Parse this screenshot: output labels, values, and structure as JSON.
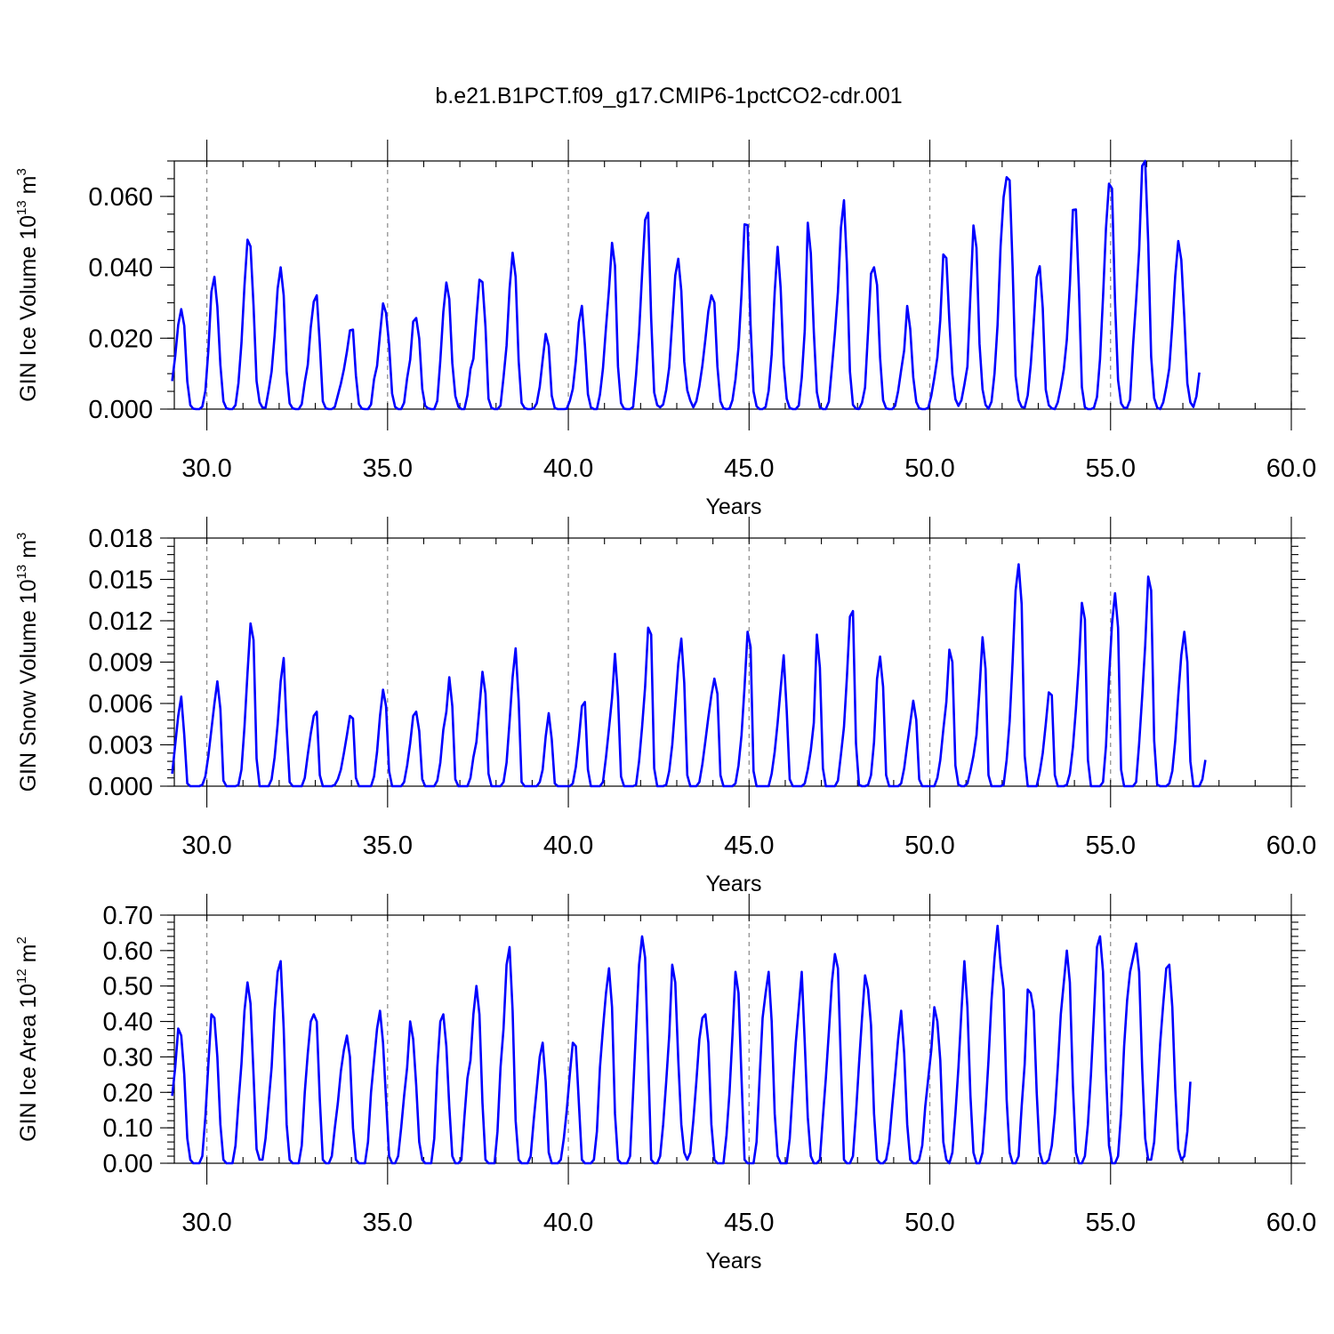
{
  "figure": {
    "title": "b.e21.B1PCT.f09_g17.CMIP6-1pctCO2-cdr.001"
  },
  "chart_data": [
    {
      "type": "line",
      "xlabel": "Years",
      "ylabel": {
        "base": "GIN Ice Volume 10",
        "exp": "13",
        "unit": " m",
        "unit_exp": "3"
      },
      "xlim": [
        29.1,
        60.0
      ],
      "ylim": [
        0.0,
        0.07
      ],
      "x_ticks": [
        30,
        35,
        40,
        45,
        50,
        55,
        60
      ],
      "x_tick_labels": [
        "30.0",
        "35.0",
        "40.0",
        "45.0",
        "50.0",
        "55.0",
        "60.0"
      ],
      "y_ticks": [
        0.0,
        0.02,
        0.04,
        0.06
      ],
      "y_tick_labels": [
        "0.000",
        "0.020",
        "0.040",
        "0.060"
      ],
      "y_minor_step": 0.005,
      "grid": "vertical dashed at major x ticks",
      "series_color": "#0000ff",
      "t0": 29.0417,
      "dt": 0.08333,
      "values": [
        0.0079,
        0.0149,
        0.0238,
        0.0282,
        0.0235,
        0.0078,
        0.0011,
        0.0001,
        0.0,
        0.0,
        0.0007,
        0.0051,
        0.0166,
        0.0331,
        0.0373,
        0.0289,
        0.0125,
        0.0022,
        0.0002,
        0.0,
        0.0,
        0.0011,
        0.0073,
        0.0186,
        0.0348,
        0.0478,
        0.0459,
        0.0291,
        0.0079,
        0.0019,
        0.0004,
        0.0004,
        0.0052,
        0.0106,
        0.0208,
        0.034,
        0.04,
        0.0321,
        0.0107,
        0.0016,
        0.0002,
        0.0,
        0.0,
        0.0014,
        0.0076,
        0.0125,
        0.023,
        0.0303,
        0.0321,
        0.0183,
        0.0022,
        0.0002,
        0.0,
        0.0,
        0.0006,
        0.0039,
        0.0072,
        0.0112,
        0.0162,
        0.0222,
        0.0224,
        0.0095,
        0.0014,
        0.0001,
        0.0,
        0.0,
        0.0013,
        0.0084,
        0.0122,
        0.0212,
        0.0298,
        0.0271,
        0.0182,
        0.0044,
        0.0006,
        0.0,
        0.0,
        0.0018,
        0.0087,
        0.0139,
        0.0247,
        0.0257,
        0.0199,
        0.0057,
        0.0009,
        0.0002,
        0.0,
        0.0,
        0.0023,
        0.0137,
        0.0274,
        0.0357,
        0.031,
        0.013,
        0.0037,
        0.0007,
        0.0,
        0.0,
        0.0039,
        0.0113,
        0.0142,
        0.0258,
        0.0365,
        0.0358,
        0.0232,
        0.0029,
        0.0003,
        0.0,
        0.0,
        0.001,
        0.009,
        0.0179,
        0.034,
        0.0441,
        0.0373,
        0.0136,
        0.0017,
        0.0003,
        0.0,
        0.0,
        0.0002,
        0.0016,
        0.0063,
        0.0139,
        0.0212,
        0.0178,
        0.0038,
        0.0003,
        0.0,
        0.0,
        0.0,
        0.0001,
        0.0023,
        0.0057,
        0.0135,
        0.0245,
        0.0291,
        0.018,
        0.0042,
        0.0005,
        0.0,
        0.0,
        0.0041,
        0.0115,
        0.023,
        0.0338,
        0.0469,
        0.0405,
        0.012,
        0.0017,
        0.0001,
        0.0,
        0.0,
        0.0006,
        0.0096,
        0.0215,
        0.0381,
        0.0534,
        0.0554,
        0.0256,
        0.0047,
        0.0011,
        0.0005,
        0.0013,
        0.0054,
        0.0118,
        0.0247,
        0.0377,
        0.0424,
        0.0333,
        0.0134,
        0.0053,
        0.0024,
        0.0005,
        0.0022,
        0.0065,
        0.0123,
        0.0198,
        0.0276,
        0.0321,
        0.03,
        0.012,
        0.0022,
        0.0002,
        0.0,
        0.0001,
        0.0025,
        0.0084,
        0.0174,
        0.0326,
        0.0521,
        0.0519,
        0.0236,
        0.005,
        0.0008,
        0.0,
        0.0,
        0.0006,
        0.0052,
        0.0154,
        0.033,
        0.0458,
        0.0341,
        0.0126,
        0.0029,
        0.0003,
        0.0,
        0.0,
        0.001,
        0.0088,
        0.0222,
        0.0526,
        0.044,
        0.0218,
        0.0048,
        0.0005,
        0.0,
        0.0,
        0.0021,
        0.0116,
        0.0215,
        0.0331,
        0.0512,
        0.0589,
        0.0409,
        0.0106,
        0.0012,
        0.0001,
        0.0,
        0.0018,
        0.0061,
        0.0219,
        0.0382,
        0.04,
        0.035,
        0.0145,
        0.0025,
        0.0002,
        0.0,
        0.0,
        0.0009,
        0.0051,
        0.011,
        0.0166,
        0.0291,
        0.0226,
        0.009,
        0.002,
        0.0002,
        0.0,
        0.0,
        0.0004,
        0.0038,
        0.0088,
        0.0146,
        0.0252,
        0.0436,
        0.0426,
        0.0249,
        0.0098,
        0.0028,
        0.0009,
        0.0025,
        0.0069,
        0.012,
        0.0324,
        0.0518,
        0.0455,
        0.0184,
        0.0056,
        0.0012,
        0.0001,
        0.0021,
        0.0101,
        0.0237,
        0.0459,
        0.0598,
        0.0654,
        0.0645,
        0.0402,
        0.0093,
        0.0025,
        0.0006,
        0.0004,
        0.0039,
        0.0124,
        0.0245,
        0.0372,
        0.0403,
        0.0285,
        0.0055,
        0.0011,
        0.0002,
        0.0,
        0.0019,
        0.0061,
        0.0112,
        0.0196,
        0.035,
        0.0562,
        0.0563,
        0.0338,
        0.0062,
        0.0005,
        0.0,
        0.0,
        0.0004,
        0.0034,
        0.0141,
        0.0316,
        0.051,
        0.0636,
        0.0622,
        0.0302,
        0.0082,
        0.0016,
        0.0003,
        0.0004,
        0.0026,
        0.0182,
        0.0307,
        0.0448,
        0.0686,
        0.07,
        0.047,
        0.0148,
        0.0031,
        0.0004,
        0.0,
        0.0019,
        0.0062,
        0.0115,
        0.0238,
        0.0376,
        0.0474,
        0.0421,
        0.0259,
        0.0073,
        0.0019,
        0.0006,
        0.0036,
        0.0103
      ]
    },
    {
      "type": "line",
      "xlabel": "Years",
      "ylabel": {
        "base": "GIN Snow Volume 10",
        "exp": "13",
        "unit": " m",
        "unit_exp": "3"
      },
      "xlim": [
        29.1,
        60.0
      ],
      "ylim": [
        0.0,
        0.018
      ],
      "x_ticks": [
        30,
        35,
        40,
        45,
        50,
        55,
        60
      ],
      "x_tick_labels": [
        "30.0",
        "35.0",
        "40.0",
        "45.0",
        "50.0",
        "55.0",
        "60.0"
      ],
      "y_ticks": [
        0.0,
        0.003,
        0.006,
        0.009,
        0.012,
        0.015,
        0.018
      ],
      "y_tick_labels": [
        "0.000",
        "0.003",
        "0.006",
        "0.009",
        "0.012",
        "0.015",
        "0.018"
      ],
      "y_minor_step": 0.0006,
      "grid": "vertical dashed at major x ticks",
      "series_color": "#0000ff",
      "t0": 29.0417,
      "dt": 0.08333,
      "values": [
        0.0009,
        0.003,
        0.0051,
        0.0065,
        0.0037,
        0.0002,
        0.0,
        0.0,
        0.0,
        0.0,
        0.0001,
        0.0007,
        0.0022,
        0.0041,
        0.006,
        0.0076,
        0.0056,
        0.0004,
        0.0,
        0.0,
        0.0,
        0.0,
        0.0001,
        0.0012,
        0.0043,
        0.0082,
        0.0118,
        0.0106,
        0.002,
        0.0,
        0.0,
        0.0,
        0.0,
        0.0005,
        0.0021,
        0.0045,
        0.0076,
        0.0093,
        0.0043,
        0.0003,
        0.0,
        0.0,
        0.0,
        0.0,
        0.0006,
        0.0023,
        0.0038,
        0.0051,
        0.0054,
        0.0008,
        0.0,
        0.0,
        0.0,
        0.0,
        0.0001,
        0.0005,
        0.0012,
        0.0024,
        0.0037,
        0.0051,
        0.0049,
        0.0006,
        0.0,
        0.0,
        0.0,
        0.0,
        0.0,
        0.0007,
        0.0025,
        0.0051,
        0.007,
        0.0058,
        0.0011,
        0.0,
        0.0,
        0.0,
        0.0,
        0.0003,
        0.0015,
        0.0031,
        0.0051,
        0.0054,
        0.004,
        0.0005,
        0.0,
        0.0,
        0.0,
        0.0,
        0.0004,
        0.0017,
        0.0041,
        0.0054,
        0.0079,
        0.0058,
        0.0005,
        0.0,
        0.0,
        0.0,
        0.0,
        0.0006,
        0.0021,
        0.0032,
        0.0057,
        0.0083,
        0.0067,
        0.0009,
        0.0,
        0.0,
        0.0,
        0.0,
        0.0003,
        0.0017,
        0.0047,
        0.0079,
        0.01,
        0.0062,
        0.0003,
        0.0,
        0.0,
        0.0,
        0.0,
        0.0,
        0.0003,
        0.0012,
        0.0036,
        0.0053,
        0.0034,
        0.0002,
        0.0,
        0.0,
        0.0,
        0.0,
        0.0,
        0.0002,
        0.0014,
        0.0034,
        0.0058,
        0.0061,
        0.0012,
        0.0,
        0.0,
        0.0,
        0.0,
        0.0003,
        0.0021,
        0.0042,
        0.0064,
        0.0096,
        0.0065,
        0.0007,
        0.0,
        0.0,
        0.0,
        0.0,
        0.0001,
        0.0018,
        0.0043,
        0.0072,
        0.0115,
        0.011,
        0.0013,
        0.0,
        0.0,
        0.0,
        0.0001,
        0.0011,
        0.003,
        0.0059,
        0.0089,
        0.0107,
        0.0075,
        0.0008,
        0.0,
        0.0,
        0.0,
        0.0003,
        0.0016,
        0.0033,
        0.005,
        0.0066,
        0.0078,
        0.0067,
        0.0008,
        0.0,
        0.0,
        0.0,
        0.0,
        0.0002,
        0.0015,
        0.0037,
        0.0072,
        0.0112,
        0.0101,
        0.0011,
        0.0,
        0.0,
        0.0,
        0.0,
        0.0,
        0.0009,
        0.0025,
        0.0046,
        0.0071,
        0.0095,
        0.0055,
        0.0005,
        0.0,
        0.0,
        0.0,
        0.0,
        0.0002,
        0.0012,
        0.0026,
        0.0046,
        0.011,
        0.0086,
        0.0013,
        0.0,
        0.0,
        0.0,
        0.0,
        0.0004,
        0.0023,
        0.0043,
        0.0079,
        0.0123,
        0.0127,
        0.0031,
        0.0001,
        0.0,
        0.0,
        0.0001,
        0.0008,
        0.0032,
        0.0078,
        0.0094,
        0.0072,
        0.0008,
        0.0,
        0.0,
        0.0,
        0.0,
        0.0002,
        0.0013,
        0.003,
        0.0046,
        0.0062,
        0.0048,
        0.0005,
        0.0,
        0.0,
        0.0,
        0.0,
        0.0,
        0.0006,
        0.0019,
        0.0041,
        0.0061,
        0.0099,
        0.009,
        0.0015,
        0.0001,
        0.0,
        0.0,
        0.0002,
        0.0011,
        0.0022,
        0.0037,
        0.007,
        0.0108,
        0.0085,
        0.0008,
        0.0,
        0.0,
        0.0,
        0.0,
        0.0001,
        0.0019,
        0.0047,
        0.009,
        0.0142,
        0.0161,
        0.0132,
        0.0022,
        0.0,
        0.0,
        0.0,
        0.0,
        0.001,
        0.0024,
        0.0045,
        0.0068,
        0.0066,
        0.0008,
        0.0,
        0.0,
        0.0,
        0.0001,
        0.0009,
        0.0028,
        0.0056,
        0.0089,
        0.0133,
        0.0121,
        0.0019,
        0.0,
        0.0,
        0.0,
        0.0,
        0.0003,
        0.0029,
        0.0078,
        0.0118,
        0.014,
        0.0115,
        0.0012,
        0.0,
        0.0,
        0.0,
        0.0,
        0.0003,
        0.0031,
        0.0065,
        0.0102,
        0.0152,
        0.0142,
        0.0033,
        0.0001,
        0.0,
        0.0,
        0.0,
        0.0002,
        0.0011,
        0.0033,
        0.0066,
        0.0095,
        0.0112,
        0.009,
        0.0018,
        0.0,
        0.0,
        0.0,
        0.0005,
        0.0019
      ]
    },
    {
      "type": "line",
      "xlabel": "Years",
      "ylabel": {
        "base": "GIN Ice Area 10",
        "exp": "12",
        "unit": " m",
        "unit_exp": "2"
      },
      "xlim": [
        29.1,
        60.0
      ],
      "ylim": [
        0.0,
        0.7
      ],
      "x_ticks": [
        30,
        35,
        40,
        45,
        50,
        55,
        60
      ],
      "x_tick_labels": [
        "30.0",
        "35.0",
        "40.0",
        "45.0",
        "50.0",
        "55.0",
        "60.0"
      ],
      "y_ticks": [
        0.0,
        0.1,
        0.2,
        0.3,
        0.4,
        0.5,
        0.6,
        0.7
      ],
      "y_tick_labels": [
        "0.00",
        "0.10",
        "0.20",
        "0.30",
        "0.40",
        "0.50",
        "0.60",
        "0.70"
      ],
      "y_minor_step": 0.02,
      "grid": "vertical dashed at major x ticks",
      "series_color": "#0000ff",
      "t0": 29.0417,
      "dt": 0.08333,
      "values": [
        0.19,
        0.27,
        0.38,
        0.36,
        0.25,
        0.07,
        0.01,
        0.0,
        0.0,
        0.0,
        0.02,
        0.13,
        0.28,
        0.42,
        0.41,
        0.3,
        0.11,
        0.01,
        0.0,
        0.0,
        0.0,
        0.05,
        0.17,
        0.28,
        0.43,
        0.51,
        0.45,
        0.25,
        0.04,
        0.01,
        0.01,
        0.07,
        0.17,
        0.27,
        0.43,
        0.54,
        0.57,
        0.38,
        0.11,
        0.01,
        0.0,
        0.0,
        0.0,
        0.05,
        0.2,
        0.31,
        0.4,
        0.42,
        0.4,
        0.18,
        0.01,
        0.0,
        0.0,
        0.02,
        0.1,
        0.17,
        0.26,
        0.32,
        0.36,
        0.3,
        0.1,
        0.01,
        0.0,
        0.0,
        0.0,
        0.06,
        0.2,
        0.29,
        0.38,
        0.43,
        0.34,
        0.18,
        0.02,
        0.0,
        0.0,
        0.02,
        0.1,
        0.19,
        0.27,
        0.4,
        0.35,
        0.22,
        0.06,
        0.01,
        0.0,
        0.0,
        0.0,
        0.07,
        0.27,
        0.4,
        0.42,
        0.33,
        0.16,
        0.02,
        0.0,
        0.0,
        0.01,
        0.13,
        0.24,
        0.29,
        0.42,
        0.5,
        0.42,
        0.17,
        0.01,
        0.0,
        0.0,
        0.0,
        0.09,
        0.27,
        0.38,
        0.56,
        0.61,
        0.43,
        0.12,
        0.01,
        0.0,
        0.0,
        0.0,
        0.02,
        0.12,
        0.21,
        0.3,
        0.34,
        0.23,
        0.03,
        0.0,
        0.0,
        0.0,
        0.01,
        0.07,
        0.15,
        0.25,
        0.34,
        0.33,
        0.17,
        0.01,
        0.0,
        0.0,
        0.0,
        0.01,
        0.09,
        0.27,
        0.38,
        0.48,
        0.55,
        0.44,
        0.14,
        0.01,
        0.0,
        0.0,
        0.0,
        0.02,
        0.2,
        0.38,
        0.56,
        0.64,
        0.58,
        0.3,
        0.01,
        0.0,
        0.0,
        0.02,
        0.11,
        0.23,
        0.36,
        0.56,
        0.51,
        0.29,
        0.11,
        0.03,
        0.01,
        0.03,
        0.12,
        0.23,
        0.35,
        0.41,
        0.42,
        0.34,
        0.11,
        0.01,
        0.0,
        0.0,
        0.0,
        0.08,
        0.2,
        0.36,
        0.54,
        0.48,
        0.24,
        0.01,
        0.0,
        0.0,
        0.0,
        0.06,
        0.24,
        0.41,
        0.48,
        0.54,
        0.4,
        0.14,
        0.02,
        0.0,
        0.0,
        0.0,
        0.07,
        0.21,
        0.34,
        0.44,
        0.54,
        0.34,
        0.13,
        0.02,
        0.0,
        0.0,
        0.01,
        0.13,
        0.24,
        0.37,
        0.51,
        0.59,
        0.55,
        0.28,
        0.01,
        0.0,
        0.0,
        0.02,
        0.14,
        0.28,
        0.41,
        0.53,
        0.49,
        0.39,
        0.14,
        0.01,
        0.0,
        0.0,
        0.01,
        0.06,
        0.16,
        0.25,
        0.35,
        0.43,
        0.31,
        0.11,
        0.01,
        0.0,
        0.0,
        0.01,
        0.05,
        0.16,
        0.24,
        0.32,
        0.44,
        0.4,
        0.29,
        0.06,
        0.01,
        0.0,
        0.03,
        0.14,
        0.27,
        0.43,
        0.57,
        0.44,
        0.19,
        0.03,
        0.0,
        0.0,
        0.03,
        0.15,
        0.29,
        0.46,
        0.58,
        0.67,
        0.56,
        0.49,
        0.18,
        0.03,
        0.0,
        0.0,
        0.02,
        0.16,
        0.28,
        0.49,
        0.48,
        0.43,
        0.2,
        0.03,
        0.0,
        0.0,
        0.01,
        0.05,
        0.14,
        0.27,
        0.42,
        0.51,
        0.6,
        0.51,
        0.22,
        0.03,
        0.0,
        0.0,
        0.02,
        0.11,
        0.25,
        0.42,
        0.61,
        0.64,
        0.54,
        0.26,
        0.05,
        0.0,
        0.0,
        0.02,
        0.14,
        0.33,
        0.46,
        0.54,
        0.58,
        0.62,
        0.54,
        0.27,
        0.07,
        0.01,
        0.01,
        0.06,
        0.2,
        0.34,
        0.45,
        0.55,
        0.56,
        0.44,
        0.21,
        0.04,
        0.01,
        0.02,
        0.09,
        0.23
      ]
    }
  ]
}
